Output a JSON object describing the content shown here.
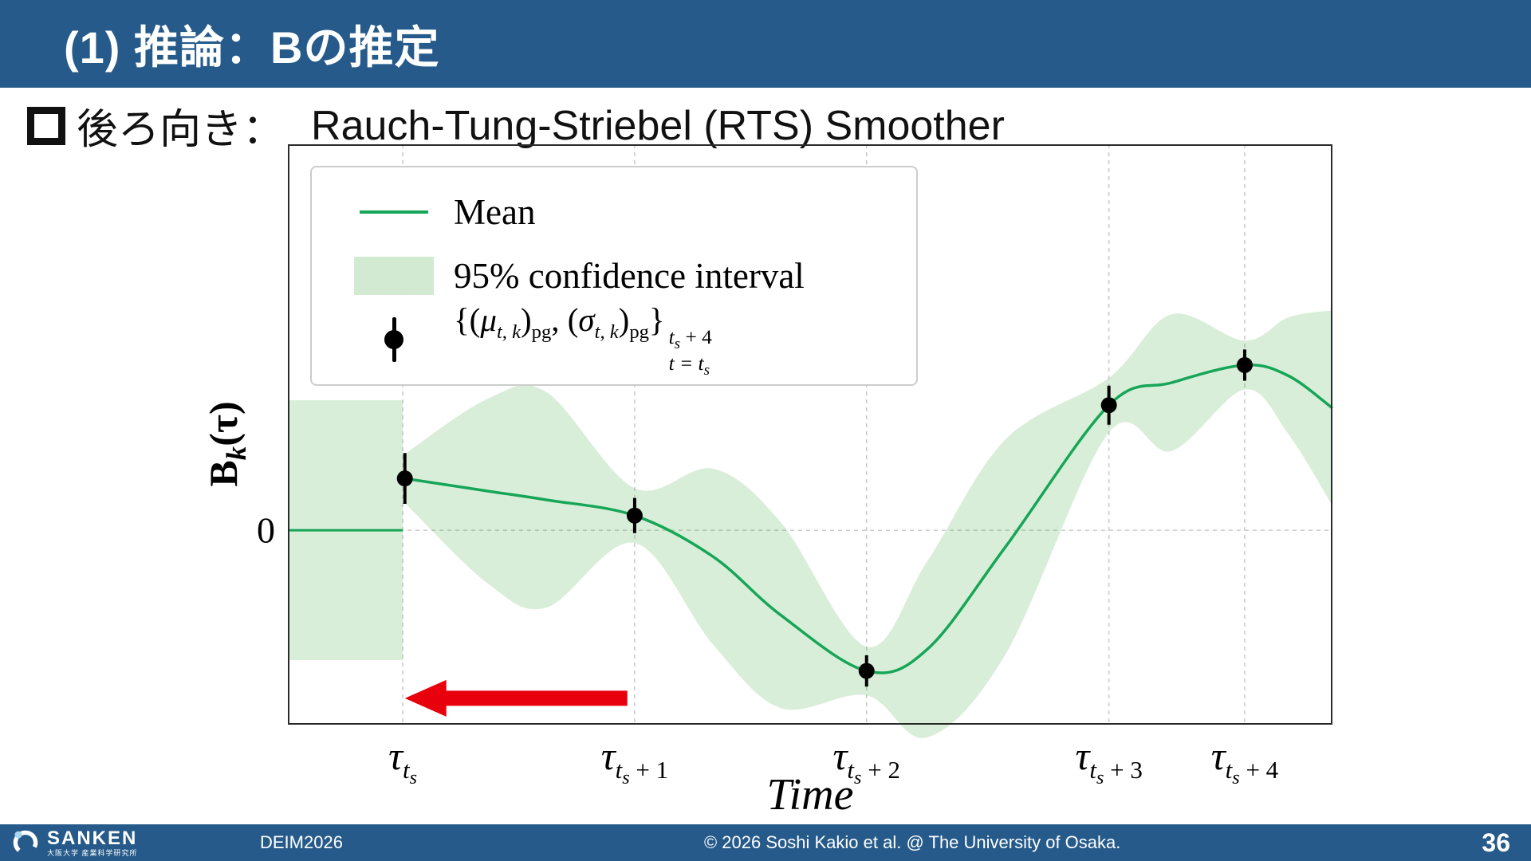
{
  "theme": {
    "header_bg": "#255a8a",
    "text_on_dark": "#ffffff"
  },
  "slide": {
    "title": "(1) 推論：Bの推定",
    "bullet_text_ja": "後ろ向き：",
    "bullet_text_en": "Rauch-Tung-Striebel (RTS) Smoother"
  },
  "legend": {
    "mean_label": "Mean",
    "ci_label": "95% confidence interval",
    "points_label_parts": {
      "p1": "{(",
      "mu": "μ",
      "s1": "t, k",
      "p2": ")",
      "pg1": "pg",
      "p3": ", (",
      "sigma": "σ",
      "s2": "t, k",
      "p4": ")",
      "pg2": "pg",
      "p5": "}",
      "sup_t": "t",
      "sup_s": "s",
      "sup_rest": " + 4",
      "sub_pre": "t = t",
      "sub_s": "s"
    }
  },
  "footer": {
    "logo_text": "SANKEN",
    "logo_subtext": "大阪大学 産業科学研究所",
    "conference": "DEIM2026",
    "copyright": "© 2026 Soshi Kakio et al. @ The University of Osaka.",
    "page_number": "36"
  },
  "chart_data": {
    "type": "line",
    "title": "",
    "xlabel": "Time",
    "ylabel_parts": {
      "main": "B",
      "sub": "k",
      "rest": "(τ)"
    },
    "ylim": [
      -1.99,
      3.95
    ],
    "grid": true,
    "legend_position": "upper-left",
    "colors": {
      "mean": "#17a558",
      "band": "#2ca02c",
      "band_opacity": 0.18,
      "grid": "#c9c9c9",
      "arrow": "#e8000d",
      "point": "#000000",
      "frame": "#2a2a2a"
    },
    "ytick": {
      "value": 0,
      "label": "0"
    },
    "x_ticks": [
      {
        "x": 0.11,
        "tau": "τ",
        "t": "t",
        "s": "s",
        "rest": ""
      },
      {
        "x": 0.332,
        "tau": "τ",
        "t": "t",
        "s": "s",
        "rest": " + 1"
      },
      {
        "x": 0.554,
        "tau": "τ",
        "t": "t",
        "s": "s",
        "rest": " + 2"
      },
      {
        "x": 0.786,
        "tau": "τ",
        "t": "t",
        "s": "s",
        "rest": " + 3"
      },
      {
        "x": 0.916,
        "tau": "τ",
        "t": "t",
        "s": "s",
        "rest": " + 4"
      }
    ],
    "prior": {
      "x_start": 0,
      "x_end": 0.11,
      "mean": 0,
      "half": 1.33
    },
    "curve": [
      {
        "x": 0.112,
        "m": 0.53,
        "s": 0.25
      },
      {
        "x": 0.192,
        "m": 0.4,
        "s": 0.95
      },
      {
        "x": 0.248,
        "m": 0.31,
        "s": 1.1
      },
      {
        "x": 0.332,
        "m": 0.15,
        "s": 0.28
      },
      {
        "x": 0.407,
        "m": -0.27,
        "s": 0.9
      },
      {
        "x": 0.472,
        "m": -0.87,
        "s": 0.95
      },
      {
        "x": 0.554,
        "m": -1.44,
        "s": 0.25
      },
      {
        "x": 0.612,
        "m": -1.22,
        "s": 0.9
      },
      {
        "x": 0.687,
        "m": -0.17,
        "s": 1.1
      },
      {
        "x": 0.786,
        "m": 1.28,
        "s": 0.28
      },
      {
        "x": 0.846,
        "m": 1.51,
        "s": 0.7
      },
      {
        "x": 0.916,
        "m": 1.69,
        "s": 0.25
      },
      {
        "x": 0.958,
        "m": 1.58,
        "s": 0.6
      },
      {
        "x": 1.0,
        "m": 1.25,
        "s": 1.0
      }
    ],
    "points": {
      "x": [
        0.112,
        0.332,
        0.554,
        0.786,
        0.916
      ],
      "mean": [
        0.53,
        0.15,
        -1.44,
        1.28,
        1.69
      ],
      "err": [
        0.26,
        0.18,
        0.16,
        0.2,
        0.16
      ]
    },
    "arrow": {
      "x_tail": 0.325,
      "x_head": 0.112,
      "v": -1.72
    }
  }
}
